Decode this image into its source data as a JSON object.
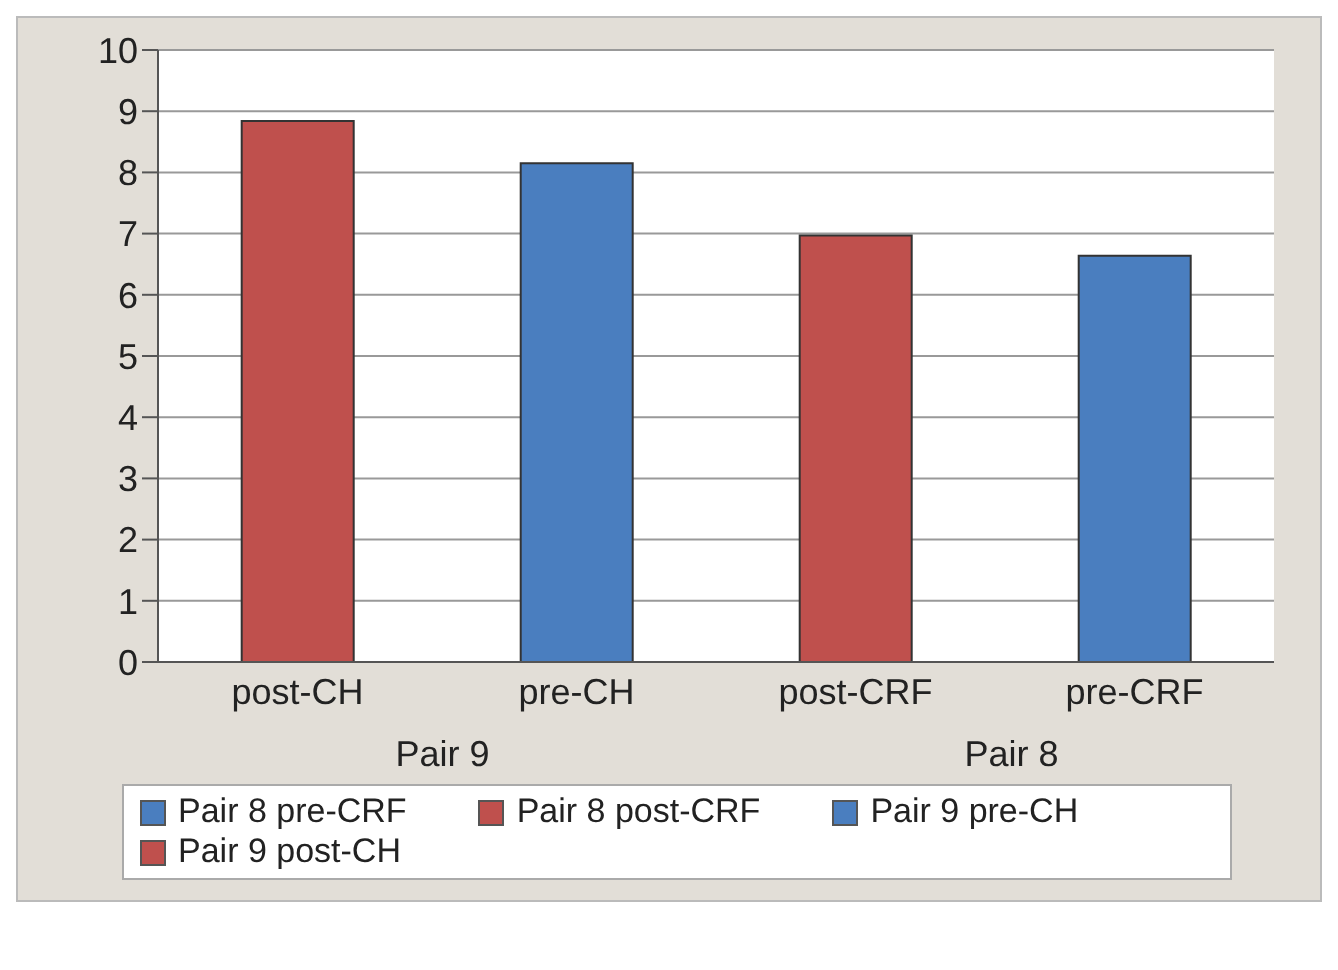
{
  "chart_data": {
    "type": "bar",
    "stacked": true,
    "categories": [
      "post-CH",
      "pre-CH",
      "post-CRF",
      "pre-CRF"
    ],
    "series": [
      {
        "name": "Pair 8 pre-CRF",
        "color": "#4a7ebf",
        "values": [
          null,
          null,
          null,
          6.64
        ]
      },
      {
        "name": "Pair 8 post-CRF",
        "color": "#bf504d",
        "values": [
          null,
          null,
          6.97,
          null
        ]
      },
      {
        "name": "Pair 9 pre-CH",
        "color": "#4a7ebf",
        "values": [
          null,
          8.15,
          null,
          null
        ]
      },
      {
        "name": "Pair 9 post-CH",
        "color": "#bf504d",
        "values": [
          8.84,
          null,
          null,
          null
        ]
      }
    ],
    "annotations": [
      "Pair 9",
      "Pair 8"
    ],
    "ylim": [
      0,
      10
    ],
    "yticks": [
      0,
      1,
      2,
      3,
      4,
      5,
      6,
      7,
      8,
      9,
      10
    ],
    "grid": "y",
    "legend": "bottom"
  }
}
